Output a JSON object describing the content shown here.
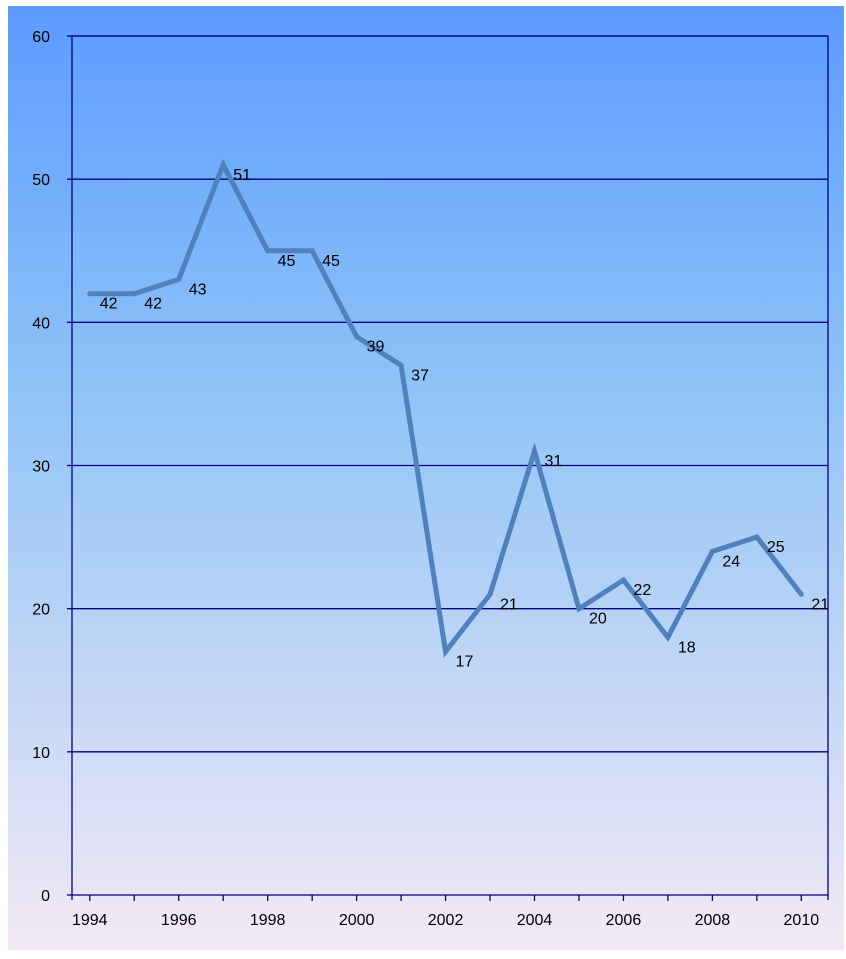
{
  "chart_data": {
    "type": "line",
    "x": [
      1994,
      1995,
      1996,
      1997,
      1998,
      1999,
      2000,
      2001,
      2002,
      2003,
      2004,
      2005,
      2006,
      2007,
      2008,
      2009,
      2010
    ],
    "series": [
      {
        "values": [
          42,
          42,
          43,
          51,
          45,
          45,
          39,
          37,
          17,
          21,
          31,
          20,
          22,
          18,
          24,
          25,
          21
        ]
      }
    ],
    "data_labels": [
      "42",
      "42",
      "43",
      "51",
      "45",
      "45",
      "39",
      "37",
      "17",
      "21",
      "31",
      "20",
      "22",
      "18",
      "24",
      "25",
      "21"
    ],
    "x_tick_labels": [
      "1994",
      "1996",
      "1998",
      "2000",
      "2002",
      "2004",
      "2006",
      "2008",
      "2010"
    ],
    "y_tick_labels": [
      "0",
      "10",
      "20",
      "30",
      "40",
      "50",
      "60"
    ],
    "xlim": [
      1993.6,
      2010.6
    ],
    "ylim": [
      0,
      60
    ],
    "grid": true,
    "legend": "none",
    "colors": {
      "line": "#4F81BD",
      "gridline": "#000080",
      "gradient_top": "#5B9BFF",
      "gradient_mid": "#8EC3F7",
      "gradient_bottom": "#F3E9F5"
    }
  }
}
